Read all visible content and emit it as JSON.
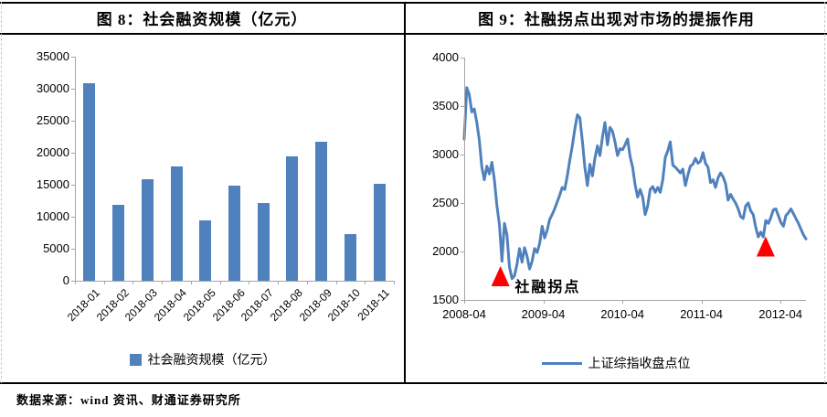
{
  "header": {
    "fig8_title": "图 8：社会融资规模（亿元）",
    "fig9_title": "图 9：社融拐点出现对市场的提振作用"
  },
  "footer": {
    "source": "数据来源：wind 资讯、财通证券研究所"
  },
  "colors": {
    "series_blue": "#4F81BD",
    "marker_red": "#FF0000",
    "axis_gray": "#A6A6A6",
    "border_black": "#000000",
    "dash_gray": "#C9C9C9"
  },
  "chart_data": [
    {
      "type": "bar",
      "title": "社会融资规模（亿元）",
      "categories": [
        "2018-01",
        "2018-02",
        "2018-03",
        "2018-04",
        "2018-05",
        "2018-06",
        "2018-07",
        "2018-08",
        "2018-09",
        "2018-10",
        "2018-11"
      ],
      "values": [
        30800,
        11900,
        15900,
        17800,
        9500,
        14900,
        12200,
        19400,
        21700,
        7300,
        15200
      ],
      "ylim": [
        0,
        35000
      ],
      "ytick_step": 5000,
      "yticks": [
        "35000",
        "30000",
        "25000",
        "20000",
        "15000",
        "10000",
        "5000",
        "0"
      ],
      "legend": "社会融资规模（亿元）",
      "grid": false,
      "legend_position": "bottom"
    },
    {
      "type": "line",
      "title": "社融拐点出现对市场的提振作用",
      "x_start": "2008-04",
      "x_end": "2012-07",
      "x_tick_labels": [
        "2008-04",
        "2009-04",
        "2010-04",
        "2011-04",
        "2012-04"
      ],
      "ylim": [
        1500,
        4000
      ],
      "ytick_step": 500,
      "yticks": [
        "4000",
        "3500",
        "3000",
        "2500",
        "2000",
        "1500"
      ],
      "legend": "上证综指收盘点位",
      "grid": false,
      "legend_position": "bottom",
      "values": [
        3160,
        3690,
        3620,
        3440,
        3470,
        3330,
        3150,
        2870,
        2740,
        2880,
        2800,
        2920,
        2740,
        2470,
        2280,
        1900,
        2290,
        2170,
        1840,
        1720,
        1750,
        1870,
        2030,
        1890,
        2040,
        1950,
        1820,
        1900,
        2030,
        1990,
        2080,
        2260,
        2140,
        2220,
        2330,
        2380,
        2440,
        2510,
        2580,
        2660,
        2640,
        2780,
        2940,
        3090,
        3260,
        3410,
        3380,
        3140,
        2870,
        2680,
        2900,
        2780,
        2960,
        3090,
        2990,
        3180,
        3330,
        3100,
        3280,
        3240,
        3130,
        2990,
        3060,
        3050,
        3100,
        3160,
        2980,
        2870,
        2690,
        2560,
        2640,
        2560,
        2380,
        2470,
        2640,
        2670,
        2610,
        2660,
        2610,
        2740,
        2970,
        3040,
        3130,
        2890,
        2870,
        2840,
        2810,
        2850,
        2680,
        2790,
        2880,
        2900,
        2960,
        2910,
        2930,
        3020,
        2910,
        2870,
        2710,
        2740,
        2660,
        2760,
        2810,
        2770,
        2700,
        2530,
        2590,
        2540,
        2500,
        2440,
        2360,
        2340,
        2470,
        2500,
        2420,
        2380,
        2250,
        2150,
        2200,
        2150,
        2320,
        2290,
        2350,
        2430,
        2440,
        2370,
        2300,
        2260,
        2370,
        2400,
        2440,
        2390,
        2340,
        2290,
        2230,
        2170,
        2130
      ],
      "annotations": [
        {
          "type": "triangle",
          "x_frac": 0.106,
          "value": 1745
        },
        {
          "type": "triangle",
          "x_frac": 0.882,
          "value": 2052
        }
      ],
      "annotation_label": {
        "text": "社融拐点",
        "x_frac": 0.148,
        "value": 1660
      }
    }
  ]
}
